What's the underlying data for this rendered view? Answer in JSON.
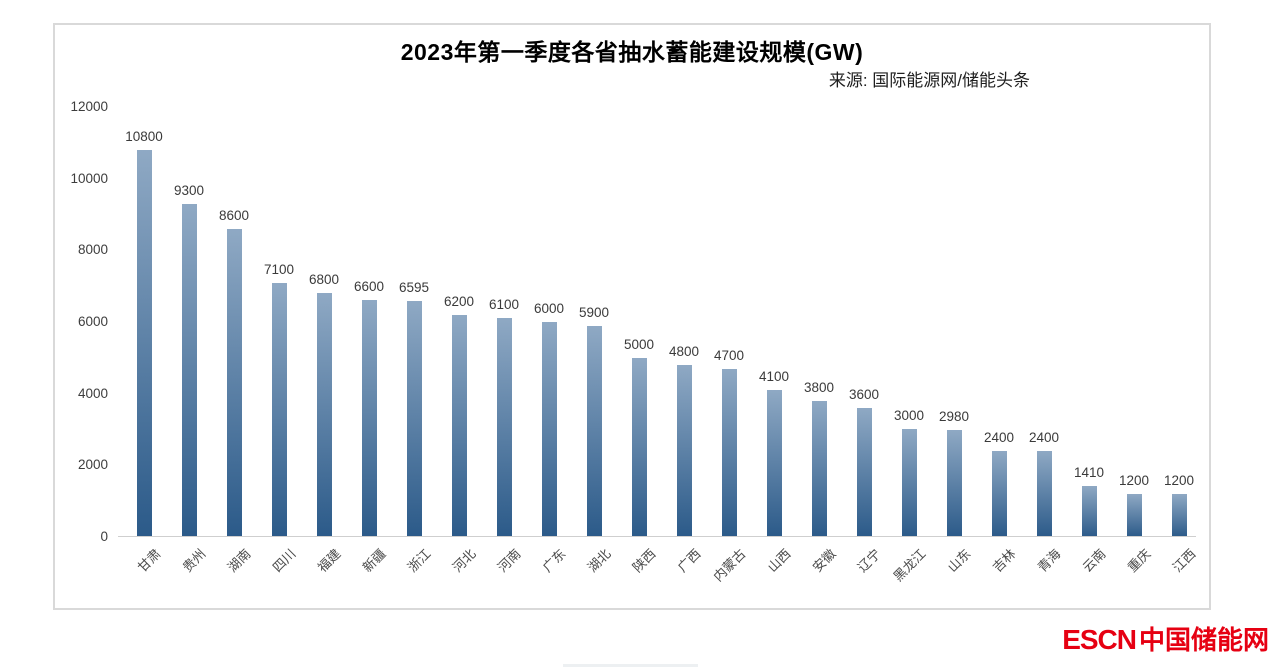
{
  "header": {
    "title": "2023年第一季度各省抽水蓄能建设规模(GW)",
    "source": "来源: 国际能源网/储能头条"
  },
  "chart_data": {
    "type": "bar",
    "title": "2023年第一季度各省抽水蓄能建设规模(GW)",
    "source_note": "来源: 国际能源网/储能头条",
    "categories": [
      "甘肃",
      "贵州",
      "湖南",
      "四川",
      "福建",
      "新疆",
      "浙江",
      "河北",
      "河南",
      "广东",
      "湖北",
      "陕西",
      "广西",
      "内蒙古",
      "山西",
      "安徽",
      "辽宁",
      "黑龙江",
      "山东",
      "吉林",
      "青海",
      "云南",
      "重庆",
      "江西"
    ],
    "values": [
      10800,
      9300,
      8600,
      7100,
      6800,
      6600,
      6595,
      6200,
      6100,
      6000,
      5900,
      5000,
      4800,
      4700,
      4100,
      3800,
      3600,
      3000,
      2980,
      2400,
      2400,
      1410,
      1200,
      1200
    ],
    "xlabel": "",
    "ylabel": "",
    "ylim": [
      0,
      12000
    ],
    "yticks": [
      0,
      2000,
      4000,
      6000,
      8000,
      10000,
      12000
    ],
    "data_labels_shown": true,
    "grid": false,
    "legend_position": "none",
    "bar_color_top": "#8fa9c4",
    "bar_color_bottom": "#2b5a89",
    "axis_line_color": "#cfcfcf",
    "frame_border_color": "#d9d9d9"
  },
  "watermark": {
    "escn_text": "ESCN",
    "site_text": "中国储能网",
    "color": "#e60012"
  }
}
